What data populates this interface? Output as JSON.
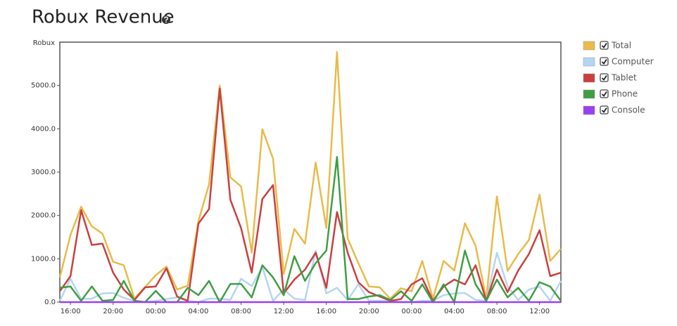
{
  "chart_data": {
    "type": "line",
    "title": "Robux Revenue",
    "y_label": "Robux",
    "categories": [
      null,
      "16:00",
      null,
      null,
      null,
      "20:00",
      null,
      null,
      null,
      "00:00",
      null,
      null,
      null,
      "04:00",
      null,
      null,
      null,
      "08:00",
      null,
      null,
      null,
      "12:00",
      null,
      null,
      null,
      "16:00",
      null,
      null,
      null,
      "20:00",
      null,
      null,
      null,
      "00:00",
      null,
      null,
      null,
      "04:00",
      null,
      null,
      null,
      "08:00",
      null,
      null,
      null,
      "12:00",
      null,
      null
    ],
    "series": [
      {
        "name": "Total",
        "color": "#e8bb4a",
        "values": [
          570,
          1550,
          2200,
          1750,
          1580,
          930,
          850,
          80,
          350,
          620,
          820,
          290,
          380,
          1870,
          2720,
          5000,
          2880,
          2670,
          1140,
          3990,
          3310,
          650,
          1690,
          1350,
          3220,
          1710,
          5770,
          1470,
          900,
          360,
          340,
          80,
          320,
          250,
          950,
          80,
          950,
          730,
          1820,
          1300,
          80,
          2440,
          720,
          1110,
          1430,
          2480,
          950,
          1230
        ]
      },
      {
        "name": "Computer",
        "color": "#b5d6ef",
        "values": [
          30,
          540,
          70,
          80,
          200,
          210,
          100,
          30,
          0,
          30,
          70,
          110,
          30,
          0,
          80,
          80,
          50,
          540,
          370,
          810,
          30,
          290,
          80,
          50,
          1190,
          200,
          330,
          50,
          410,
          30,
          30,
          30,
          0,
          0,
          30,
          30,
          160,
          200,
          210,
          50,
          30,
          1140,
          360,
          50,
          290,
          360,
          30,
          490
        ]
      },
      {
        "name": "Tablet",
        "color": "#c9403f",
        "values": [
          250,
          600,
          2120,
          1320,
          1350,
          680,
          290,
          50,
          340,
          360,
          780,
          130,
          30,
          1810,
          2150,
          4930,
          2360,
          1710,
          680,
          2380,
          2700,
          200,
          520,
          750,
          1140,
          330,
          2080,
          1140,
          460,
          230,
          130,
          30,
          70,
          410,
          550,
          30,
          360,
          520,
          410,
          850,
          30,
          750,
          230,
          730,
          1110,
          1660,
          600,
          680
        ]
      },
      {
        "name": "Phone",
        "color": "#3f9e44",
        "values": [
          330,
          360,
          30,
          360,
          30,
          50,
          490,
          30,
          0,
          260,
          0,
          0,
          330,
          160,
          490,
          0,
          420,
          420,
          110,
          850,
          570,
          160,
          1060,
          490,
          900,
          1190,
          3350,
          70,
          70,
          130,
          160,
          50,
          250,
          30,
          410,
          0,
          410,
          0,
          1190,
          410,
          30,
          520,
          110,
          330,
          30,
          460,
          360,
          30
        ]
      },
      {
        "name": "Console",
        "color": "#9b40f0",
        "values": [
          0,
          0,
          0,
          0,
          0,
          0,
          0,
          0,
          0,
          0,
          0,
          0,
          0,
          0,
          0,
          0,
          0,
          0,
          0,
          0,
          0,
          0,
          0,
          0,
          0,
          0,
          0,
          0,
          0,
          0,
          0,
          0,
          0,
          0,
          0,
          0,
          0,
          0,
          0,
          0,
          0,
          0,
          0,
          0,
          0,
          0,
          0,
          0
        ]
      }
    ],
    "ylim": [
      0,
      6000
    ],
    "yticks": [
      {
        "value": 0,
        "label": "0.0"
      },
      {
        "value": 1000,
        "label": "1000.0"
      },
      {
        "value": 2000,
        "label": "2000.0"
      },
      {
        "value": 3000,
        "label": "3000.0"
      },
      {
        "value": 4000,
        "label": "4000.0"
      },
      {
        "value": 5000,
        "label": "5000.0"
      }
    ],
    "grid": false
  }
}
